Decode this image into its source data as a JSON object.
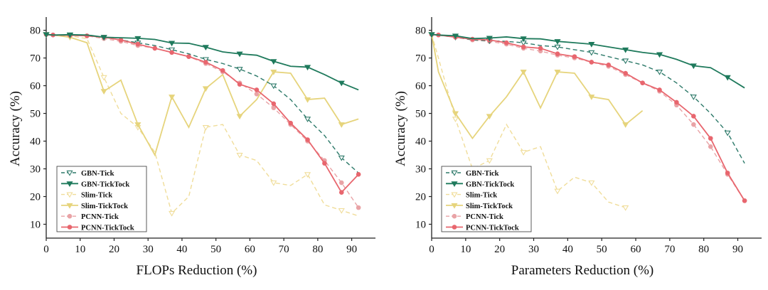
{
  "chart_data": [
    {
      "type": "line",
      "xlabel": "FLOPs Reduction (%)",
      "ylabel": "Accuracy (%)",
      "xlim": [
        0,
        97
      ],
      "ylim": [
        5,
        84
      ],
      "xticks": [
        "0",
        "10",
        "20",
        "30",
        "40",
        "50",
        "60",
        "70",
        "80",
        "90"
      ],
      "yticks": [
        "10",
        "20",
        "30",
        "40",
        "50",
        "60",
        "70",
        "80"
      ],
      "legend_position": "bottom-left",
      "series": [
        {
          "name": "GBN-Tick",
          "color": "#2e7a6a",
          "dash": true,
          "marker": "tri-down-open",
          "x": [
            0,
            2,
            7,
            12,
            17,
            22,
            27,
            32,
            37,
            42,
            47,
            52,
            57,
            62,
            67,
            72,
            77,
            82,
            87,
            92
          ],
          "y": [
            78.5,
            78.2,
            78.2,
            78,
            77.5,
            76.5,
            75.5,
            74.5,
            73,
            71.5,
            69.5,
            68,
            66,
            63.5,
            60,
            55,
            48,
            42,
            34,
            28.5
          ]
        },
        {
          "name": "GBN-TickTock",
          "color": "#1f7a5c",
          "dash": false,
          "marker": "tri-down",
          "x": [
            0,
            2,
            7,
            12,
            17,
            22,
            27,
            32,
            37,
            42,
            47,
            52,
            57,
            62,
            67,
            72,
            77,
            82,
            87,
            92
          ],
          "y": [
            78.5,
            78.3,
            78.4,
            78.3,
            77.5,
            77.3,
            77.1,
            76.7,
            75.4,
            75.3,
            73.9,
            72.2,
            71.5,
            71,
            68.8,
            67,
            66.7,
            64,
            61,
            58.5
          ]
        },
        {
          "name": "Slim-Tick",
          "color": "#f0dd9a",
          "dash": true,
          "marker": "tri-down-open",
          "x": [
            0,
            2,
            7,
            12,
            17,
            22,
            27,
            32,
            37,
            42,
            47,
            52,
            57,
            62,
            67,
            72,
            77,
            82,
            87,
            92
          ],
          "y": [
            78.5,
            78.3,
            78,
            77,
            63,
            50,
            45,
            36,
            14,
            20,
            45,
            46,
            35,
            33,
            25,
            24,
            28,
            17,
            15,
            13
          ]
        },
        {
          "name": "Slim-TickTock",
          "color": "#e6d47c",
          "dash": false,
          "marker": "tri-down",
          "x": [
            0,
            2,
            7,
            12,
            17,
            22,
            27,
            32,
            37,
            42,
            47,
            52,
            57,
            62,
            67,
            72,
            77,
            82,
            87,
            92
          ],
          "y": [
            78.5,
            78.3,
            77.5,
            75.5,
            58,
            62,
            46,
            35,
            56,
            45,
            59,
            64,
            49,
            55,
            65,
            64.5,
            55,
            55.5,
            46,
            48
          ]
        },
        {
          "name": "PCNN-Tick",
          "color": "#e9a3a6",
          "dash": true,
          "marker": "circle",
          "x": [
            0,
            2,
            7,
            12,
            17,
            22,
            27,
            32,
            37,
            42,
            47,
            52,
            57,
            62,
            67,
            72,
            77,
            82,
            87,
            92
          ],
          "y": [
            78.5,
            78.3,
            78.2,
            78,
            77,
            76,
            74.5,
            73.5,
            72,
            70.5,
            68,
            65,
            61,
            57,
            52,
            46,
            40,
            33,
            25,
            16
          ]
        },
        {
          "name": "PCNN-TickTock",
          "color": "#e8666e",
          "dash": false,
          "marker": "circle",
          "x": [
            0,
            2,
            7,
            12,
            17,
            22,
            27,
            32,
            37,
            42,
            47,
            52,
            57,
            62,
            67,
            72,
            77,
            82,
            87,
            92
          ],
          "y": [
            78.5,
            78.3,
            78.2,
            78,
            77.5,
            76.5,
            75,
            73.5,
            72,
            70.5,
            68.5,
            65.5,
            60.5,
            58.5,
            53.5,
            46.5,
            40.5,
            32,
            21.5,
            28
          ]
        }
      ]
    },
    {
      "type": "line",
      "xlabel": "Parameters Reduction (%)",
      "ylabel": "Accuracy (%)",
      "xlim": [
        0,
        97
      ],
      "ylim": [
        5,
        84
      ],
      "xticks": [
        "0",
        "10",
        "20",
        "30",
        "40",
        "50",
        "60",
        "70",
        "80",
        "90"
      ],
      "yticks": [
        "10",
        "20",
        "30",
        "40",
        "50",
        "60",
        "70",
        "80"
      ],
      "legend_position": "bottom-left",
      "series": [
        {
          "name": "GBN-Tick",
          "color": "#2e7a6a",
          "dash": true,
          "marker": "tri-down-open",
          "x": [
            0,
            2,
            7,
            12,
            17,
            22,
            27,
            32,
            37,
            42,
            47,
            52,
            57,
            62,
            67,
            72,
            77,
            82,
            87,
            92
          ],
          "y": [
            78.5,
            78.2,
            77.5,
            76.5,
            76.2,
            76,
            75.5,
            74.5,
            74,
            73,
            72,
            70.5,
            69,
            67.5,
            65,
            61,
            56,
            50,
            43,
            32
          ]
        },
        {
          "name": "GBN-TickTock",
          "color": "#1f7a5c",
          "dash": false,
          "marker": "tri-down",
          "x": [
            0,
            2,
            7,
            12,
            17,
            22,
            27,
            32,
            37,
            42,
            47,
            52,
            57,
            62,
            67,
            72,
            77,
            82,
            87,
            92
          ],
          "y": [
            78.5,
            78.3,
            78,
            77,
            77.2,
            77.6,
            77,
            76.9,
            76,
            75.5,
            75,
            74,
            73,
            72,
            71.3,
            69.5,
            67.2,
            66.5,
            63,
            59.2
          ]
        },
        {
          "name": "Slim-Tick",
          "color": "#f0dd9a",
          "dash": true,
          "marker": "tri-down-open",
          "x": [
            0,
            2,
            7,
            12,
            17,
            22,
            27,
            32,
            37,
            42,
            47,
            52,
            57
          ],
          "y": [
            78.5,
            70,
            48,
            30,
            33,
            46,
            36,
            38,
            22,
            27,
            25,
            18,
            16
          ]
        },
        {
          "name": "Slim-TickTock",
          "color": "#e6d47c",
          "dash": false,
          "marker": "tri-down",
          "x": [
            0,
            2,
            7,
            12,
            17,
            22,
            27,
            32,
            37,
            42,
            47,
            52,
            57,
            62
          ],
          "y": [
            78.5,
            65,
            50,
            41,
            49,
            56,
            65,
            52,
            65,
            64.5,
            56,
            55,
            46,
            51
          ]
        },
        {
          "name": "PCNN-Tick",
          "color": "#e9a3a6",
          "dash": true,
          "marker": "circle",
          "x": [
            0,
            2,
            7,
            12,
            17,
            22,
            27,
            32,
            37,
            42,
            47,
            52,
            57,
            62,
            67,
            72,
            77,
            82,
            87,
            92
          ],
          "y": [
            78.5,
            78.3,
            77.5,
            76.5,
            76,
            75,
            73.5,
            72.5,
            71,
            70,
            68.5,
            67,
            64,
            61,
            58,
            53,
            46,
            38,
            28,
            18.5
          ]
        },
        {
          "name": "PCNN-TickTock",
          "color": "#e8666e",
          "dash": false,
          "marker": "circle",
          "x": [
            0,
            2,
            7,
            12,
            17,
            22,
            27,
            32,
            37,
            42,
            47,
            52,
            57,
            62,
            67,
            72,
            77,
            82,
            87,
            92
          ],
          "y": [
            78.5,
            78.3,
            77.5,
            76.8,
            76.5,
            75.5,
            74,
            73.5,
            71.5,
            70.5,
            68.5,
            67.5,
            64.5,
            61,
            58.5,
            54,
            49,
            41,
            28.5,
            18.5
          ]
        }
      ]
    }
  ]
}
